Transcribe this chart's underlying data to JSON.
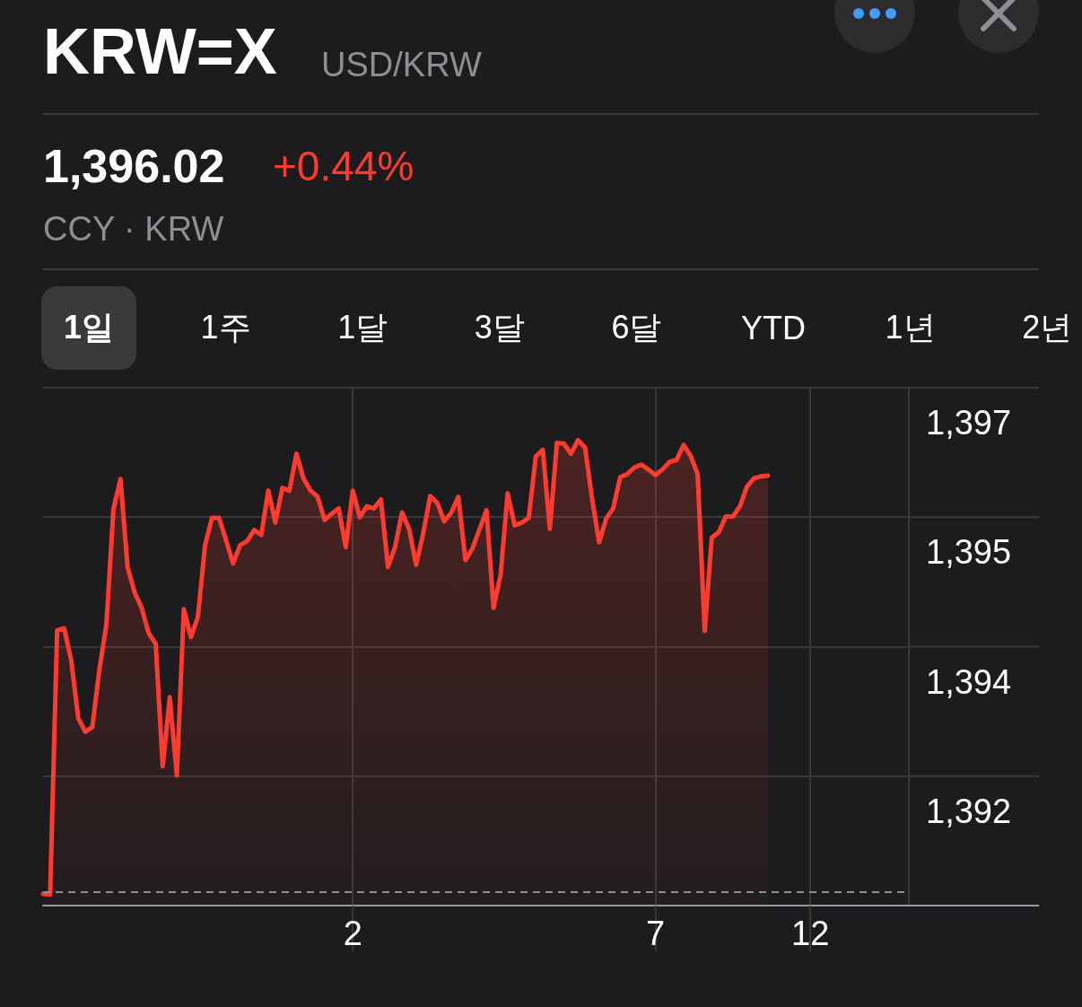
{
  "chart_data": {
    "type": "area",
    "title": "KRW=X",
    "subtitle": "USD/KRW",
    "annotations": [
      "1,396.02",
      "+0.44%",
      "CCY · KRW",
      "1일",
      "1주",
      "1달",
      "3달",
      "6달",
      "YTD",
      "1년",
      "2년"
    ],
    "categories": [
      null,
      null,
      null,
      null,
      null,
      null,
      null,
      null,
      null,
      null,
      null,
      null,
      null,
      null,
      null,
      null,
      null,
      null,
      null,
      null,
      null,
      null,
      null,
      null,
      null,
      null,
      null,
      null,
      null,
      null,
      null,
      null,
      null,
      null,
      null,
      null,
      null,
      null,
      null,
      null,
      null,
      null,
      null,
      null,
      "2",
      null,
      null,
      null,
      null,
      null,
      null,
      null,
      null,
      null,
      null,
      null,
      null,
      null,
      null,
      null,
      null,
      null,
      null,
      null,
      null,
      null,
      null,
      null,
      null,
      null,
      null,
      null,
      null,
      null,
      null,
      null,
      null,
      null,
      null,
      null,
      null,
      null,
      null,
      null,
      null,
      null,
      null,
      "7",
      null,
      null,
      null,
      null,
      null,
      null,
      null,
      null,
      null,
      null,
      null,
      null,
      null,
      null,
      null,
      null,
      null,
      null,
      null,
      null,
      null,
      "12",
      null,
      null,
      null,
      null,
      null,
      null,
      null,
      null,
      null,
      null,
      null,
      null,
      null,
      null
    ],
    "values": [
      1389.87,
      1389.86,
      1393.74,
      1393.77,
      1393.3,
      1392.45,
      1392.25,
      1392.32,
      1393.16,
      1393.83,
      1395.52,
      1395.96,
      1394.67,
      1394.3,
      1394.07,
      1393.7,
      1393.54,
      1391.74,
      1392.76,
      1391.61,
      1394.05,
      1393.64,
      1393.94,
      1394.98,
      1395.39,
      1395.39,
      1395.06,
      1394.72,
      1394.99,
      1395.05,
      1395.21,
      1395.14,
      1395.79,
      1395.32,
      1395.83,
      1395.79,
      1396.33,
      1395.97,
      1395.79,
      1395.7,
      1395.36,
      1395.45,
      1395.53,
      1394.96,
      1395.79,
      1395.4,
      1395.56,
      1395.53,
      1395.66,
      1394.67,
      1394.96,
      1395.47,
      1395.23,
      1394.7,
      1395.16,
      1395.71,
      1395.61,
      1395.34,
      1395.47,
      1395.7,
      1394.77,
      1394.94,
      1395.22,
      1395.5,
      1394.07,
      1394.55,
      1395.75,
      1395.28,
      1395.32,
      1395.39,
      1396.29,
      1396.39,
      1395.23,
      1396.49,
      1396.48,
      1396.33,
      1396.53,
      1396.42,
      1395.67,
      1395.03,
      1395.38,
      1395.53,
      1395.99,
      1396.03,
      1396.13,
      1396.17,
      1396.1,
      1396.02,
      1396.1,
      1396.21,
      1396.24,
      1396.46,
      1396.3,
      1396.03,
      1393.73,
      1395.1,
      1395.18,
      1395.41,
      1395.41,
      1395.56,
      1395.85,
      1395.97,
      1396.0,
      1396.01,
      null,
      null,
      null,
      null,
      null,
      null,
      null,
      null,
      null,
      null,
      null,
      null,
      null,
      null,
      null,
      null,
      null,
      null,
      null,
      null
    ],
    "color": "#ff3b30",
    "ylim": [
      1389.7,
      1397.3
    ],
    "yticks": [
      {
        "value": 1391.6,
        "label": "1,392"
      },
      {
        "value": 1393.5,
        "label": "1,394"
      },
      {
        "value": 1395.4,
        "label": "1,395"
      },
      {
        "value": 1397.3,
        "label": "1,397"
      }
    ],
    "ref_lines": [
      {
        "axis": "y",
        "value": 1389.9,
        "line_style": "dashed"
      }
    ],
    "grid": true
  }
}
